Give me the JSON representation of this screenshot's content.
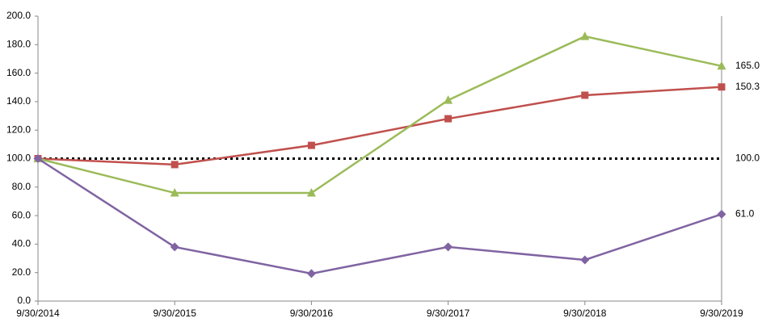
{
  "chart_data": {
    "type": "line",
    "categories": [
      "9/30/2014",
      "9/30/2015",
      "9/30/2016",
      "9/30/2017",
      "9/30/2018",
      "9/30/2019"
    ],
    "series": [
      {
        "color": "#000000",
        "dash": "dotted",
        "marker": "none",
        "values": [
          100,
          100,
          100,
          100,
          100,
          100
        ],
        "value_labels": [
          null,
          null,
          null,
          null,
          null,
          "100.0"
        ]
      },
      {
        "color": "#c0504d",
        "marker": "square",
        "values": [
          100,
          95.8,
          109.3,
          128,
          144.5,
          150.3
        ],
        "value_labels": [
          null,
          null,
          null,
          null,
          null,
          "150.3"
        ]
      },
      {
        "color": "#9bbb59",
        "marker": "triangle",
        "values": [
          100,
          75.9,
          75.9,
          141,
          185.8,
          165
        ],
        "value_labels": [
          null,
          null,
          null,
          null,
          null,
          "165.0"
        ]
      },
      {
        "color": "#8064a2",
        "marker": "diamond",
        "values": [
          100,
          38,
          19.3,
          38,
          28.9,
          61
        ],
        "value_labels": [
          null,
          null,
          null,
          null,
          null,
          "61.0"
        ]
      }
    ],
    "ylim": [
      0,
      200
    ],
    "yticks": [
      {
        "value": 0,
        "label": "0.0"
      },
      {
        "value": 20,
        "label": "20.0"
      },
      {
        "value": 40,
        "label": "40.0"
      },
      {
        "value": 60,
        "label": "60.0"
      },
      {
        "value": 80,
        "label": "80.0"
      },
      {
        "value": 100,
        "label": "100.0"
      },
      {
        "value": 120,
        "label": "120.0"
      },
      {
        "value": 140,
        "label": "140.0"
      },
      {
        "value": 160,
        "label": "160.0"
      },
      {
        "value": 180,
        "label": "180.0"
      },
      {
        "value": 200,
        "label": "200.0"
      }
    ],
    "grid": false
  }
}
